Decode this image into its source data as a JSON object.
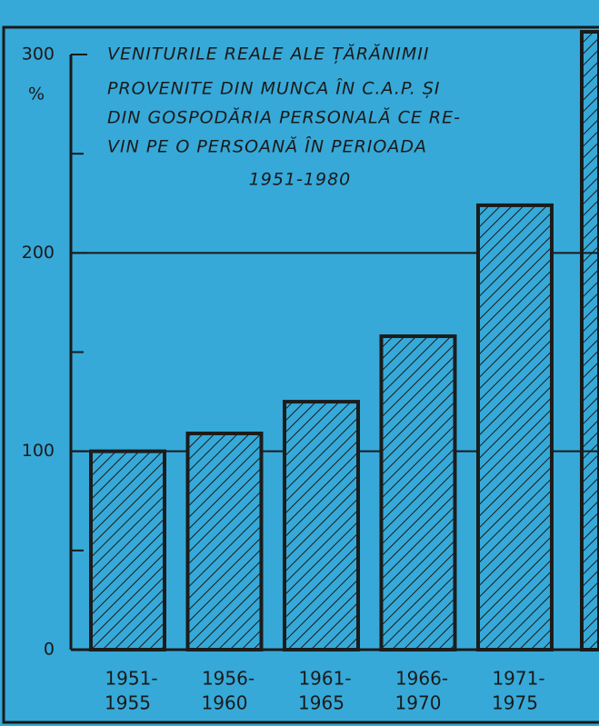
{
  "chart_data": {
    "type": "bar",
    "title_lines": [
      "VENITURILE REALE ALE ȚĂRĂNIMII",
      "PROVENITE DIN MUNCA ÎN C.A.P. ȘI",
      "DIN GOSPODĂRIA PERSONALĂ CE RE-",
      "VIN PE O PERSOANĂ ÎN PERIOADA",
      "1951-1980"
    ],
    "y_label": "%",
    "categories": [
      [
        "1951-",
        "1955"
      ],
      [
        "1956-",
        "1960"
      ],
      [
        "1961-",
        "1965"
      ],
      [
        "1966-",
        "1970"
      ],
      [
        "1971-",
        "1975"
      ]
    ],
    "values": [
      100,
      109,
      125,
      158,
      224
    ],
    "color": "#1c1c1c",
    "ylim": [
      0,
      300
    ],
    "yticks": [
      0,
      100,
      200,
      300
    ],
    "minor_yticks": [
      50,
      150,
      250
    ],
    "grid_values": [
      100,
      200
    ]
  }
}
